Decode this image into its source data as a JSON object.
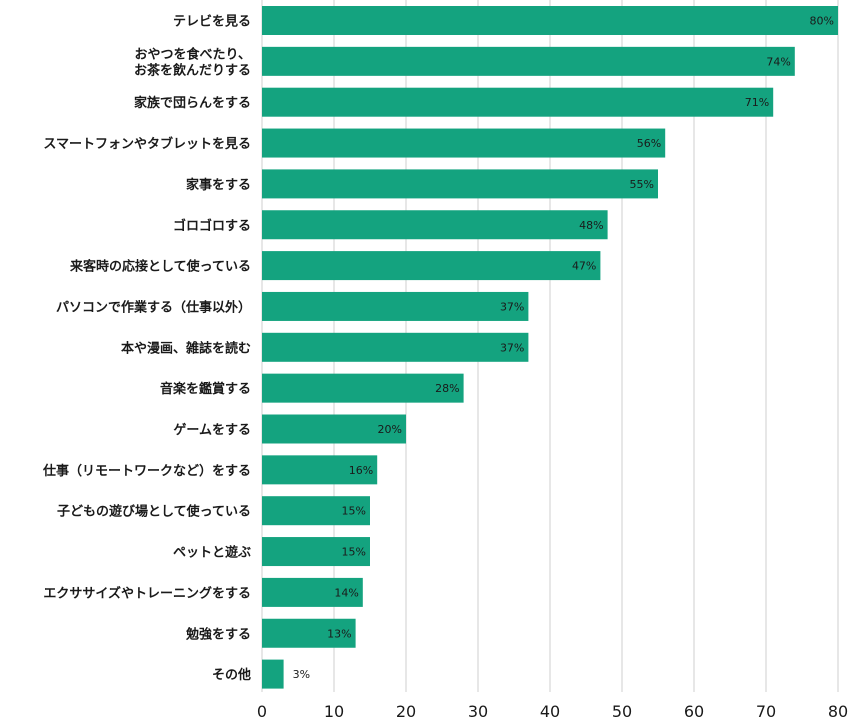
{
  "chart_data": {
    "type": "bar",
    "orientation": "horizontal",
    "categories": [
      "テレビを見る",
      "おやつを食べたり、\nお茶を飲んだりする",
      "家族で団らんをする",
      "スマートフォンやタブレットを見る",
      "家事をする",
      "ゴロゴロする",
      "来客時の応接として使っている",
      "パソコンで作業する（仕事以外）",
      "本や漫画、雑誌を読む",
      "音楽を鑑賞する",
      "ゲームをする",
      "仕事（リモートワークなど）をする",
      "子どもの遊び場として使っている",
      "ペットと遊ぶ",
      "エクササイズやトレーニングをする",
      "勉強をする",
      "その他"
    ],
    "values": [
      80,
      74,
      71,
      56,
      55,
      48,
      47,
      37,
      37,
      28,
      20,
      16,
      15,
      15,
      14,
      13,
      3
    ],
    "value_labels": [
      "80%",
      "74%",
      "71%",
      "56%",
      "55%",
      "48%",
      "47%",
      "37%",
      "37%",
      "28%",
      "20%",
      "16%",
      "15%",
      "15%",
      "14%",
      "13%",
      "3%"
    ],
    "xlim": [
      0,
      80
    ],
    "xticks": [
      0,
      10,
      20,
      30,
      40,
      50,
      60,
      70,
      80
    ],
    "grid": true,
    "bar_color": "#14a37f"
  }
}
